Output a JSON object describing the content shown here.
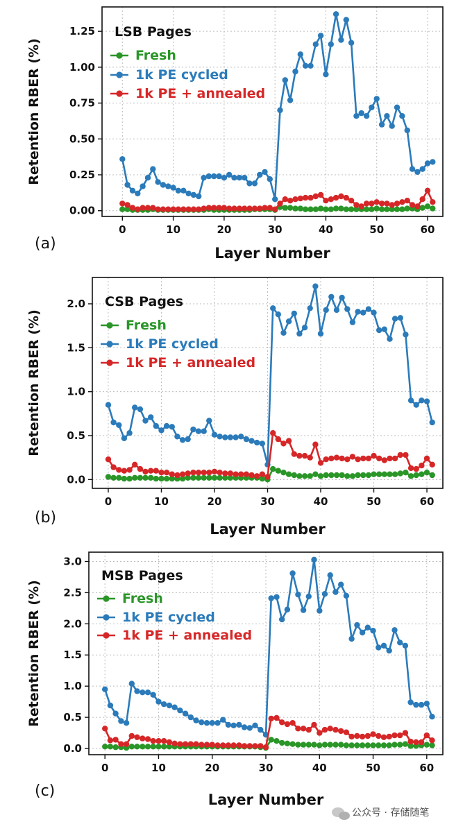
{
  "chart_data": [
    {
      "type": "line",
      "label": "(a)",
      "title": "LSB Pages",
      "xlabel": "Layer Number",
      "ylabel": "Retention RBER (%)",
      "xlim": [
        -4,
        63
      ],
      "ylim": [
        -0.04,
        1.42
      ],
      "xticks": [
        0,
        10,
        20,
        30,
        40,
        50,
        60
      ],
      "yticks": [
        0.0,
        0.25,
        0.5,
        0.75,
        1.0,
        1.25
      ],
      "ytick_labels": [
        "0.00",
        "0.25",
        "0.50",
        "0.75",
        "1.00",
        "1.25"
      ],
      "grid": true,
      "legend_position": "upper-left",
      "series": [
        {
          "name": "Fresh",
          "color": "#2a9628",
          "values": [
            0.01,
            0.01,
            0.005,
            0.005,
            0.005,
            0.005,
            0.01,
            0.005,
            0.005,
            0.005,
            0.005,
            0.005,
            0.005,
            0.005,
            0.005,
            0.005,
            0.005,
            0.01,
            0.005,
            0.005,
            0.005,
            0.005,
            0.005,
            0.005,
            0.005,
            0.005,
            0.01,
            0.01,
            0.01,
            0.01,
            0.005,
            0.025,
            0.02,
            0.02,
            0.015,
            0.015,
            0.01,
            0.01,
            0.01,
            0.015,
            0.01,
            0.01,
            0.015,
            0.015,
            0.01,
            0.01,
            0.01,
            0.01,
            0.01,
            0.01,
            0.015,
            0.01,
            0.01,
            0.01,
            0.01,
            0.01,
            0.015,
            0.015,
            0.01,
            0.02,
            0.03,
            0.015
          ]
        },
        {
          "name": "1k PE cycled",
          "color": "#2b7bba",
          "values": [
            0.36,
            0.18,
            0.14,
            0.12,
            0.17,
            0.23,
            0.29,
            0.2,
            0.18,
            0.17,
            0.16,
            0.14,
            0.14,
            0.12,
            0.11,
            0.1,
            0.23,
            0.24,
            0.24,
            0.24,
            0.23,
            0.25,
            0.23,
            0.23,
            0.23,
            0.19,
            0.19,
            0.25,
            0.27,
            0.22,
            0.08,
            0.7,
            0.91,
            0.77,
            0.97,
            1.09,
            1.01,
            1.01,
            1.16,
            1.22,
            0.95,
            1.16,
            1.37,
            1.19,
            1.33,
            1.17,
            0.66,
            0.68,
            0.66,
            0.72,
            0.78,
            0.6,
            0.66,
            0.59,
            0.72,
            0.66,
            0.56,
            0.29,
            0.27,
            0.29,
            0.33,
            0.34
          ]
        },
        {
          "name": "1k PE + annealed",
          "color": "#d62728",
          "values": [
            0.05,
            0.04,
            0.02,
            0.01,
            0.02,
            0.02,
            0.02,
            0.01,
            0.01,
            0.01,
            0.01,
            0.01,
            0.01,
            0.01,
            0.01,
            0.01,
            0.015,
            0.02,
            0.02,
            0.02,
            0.02,
            0.015,
            0.015,
            0.015,
            0.015,
            0.015,
            0.015,
            0.015,
            0.02,
            0.02,
            0.01,
            0.05,
            0.08,
            0.07,
            0.08,
            0.085,
            0.09,
            0.09,
            0.1,
            0.11,
            0.07,
            0.08,
            0.09,
            0.1,
            0.09,
            0.07,
            0.04,
            0.03,
            0.05,
            0.05,
            0.06,
            0.05,
            0.05,
            0.04,
            0.05,
            0.06,
            0.07,
            0.04,
            0.03,
            0.08,
            0.14,
            0.06
          ]
        }
      ]
    },
    {
      "type": "line",
      "label": "(b)",
      "title": "CSB Pages",
      "xlabel": "Layer Number",
      "ylabel": "Retention RBER (%)",
      "xlim": [
        -3,
        63
      ],
      "ylim": [
        -0.1,
        2.3
      ],
      "xticks": [
        0,
        10,
        20,
        30,
        40,
        50,
        60
      ],
      "yticks": [
        0.0,
        0.5,
        1.0,
        1.5,
        2.0
      ],
      "ytick_labels": [
        "0.0",
        "0.5",
        "1.0",
        "1.5",
        "2.0"
      ],
      "grid": true,
      "legend_position": "upper-left",
      "series": [
        {
          "name": "Fresh",
          "color": "#2a9628",
          "values": [
            0.03,
            0.02,
            0.02,
            0.01,
            0.01,
            0.02,
            0.02,
            0.02,
            0.02,
            0.01,
            0.01,
            0.01,
            0.01,
            0.01,
            0.01,
            0.02,
            0.02,
            0.02,
            0.02,
            0.02,
            0.02,
            0.02,
            0.02,
            0.02,
            0.02,
            0.02,
            0.02,
            0.02,
            0.02,
            0.01,
            0.0,
            0.12,
            0.1,
            0.08,
            0.06,
            0.05,
            0.04,
            0.04,
            0.04,
            0.06,
            0.04,
            0.05,
            0.05,
            0.05,
            0.05,
            0.04,
            0.04,
            0.05,
            0.05,
            0.05,
            0.06,
            0.06,
            0.06,
            0.06,
            0.06,
            0.07,
            0.08,
            0.04,
            0.05,
            0.06,
            0.08,
            0.05
          ]
        },
        {
          "name": "1k PE cycled",
          "color": "#2b7bba",
          "values": [
            0.85,
            0.65,
            0.62,
            0.47,
            0.53,
            0.82,
            0.8,
            0.67,
            0.71,
            0.61,
            0.56,
            0.61,
            0.6,
            0.49,
            0.45,
            0.46,
            0.57,
            0.55,
            0.55,
            0.67,
            0.51,
            0.49,
            0.48,
            0.48,
            0.48,
            0.49,
            0.46,
            0.44,
            0.42,
            0.41,
            0.17,
            1.95,
            1.88,
            1.67,
            1.8,
            1.89,
            1.66,
            1.73,
            1.95,
            2.2,
            1.66,
            1.93,
            2.08,
            1.93,
            2.07,
            1.94,
            1.79,
            1.91,
            1.9,
            1.94,
            1.9,
            1.7,
            1.71,
            1.6,
            1.83,
            1.84,
            1.65,
            0.9,
            0.85,
            0.9,
            0.89,
            0.65
          ]
        },
        {
          "name": "1k PE + annealed",
          "color": "#d62728",
          "values": [
            0.23,
            0.14,
            0.11,
            0.1,
            0.11,
            0.17,
            0.12,
            0.09,
            0.1,
            0.1,
            0.08,
            0.08,
            0.06,
            0.05,
            0.06,
            0.07,
            0.08,
            0.08,
            0.08,
            0.08,
            0.09,
            0.08,
            0.07,
            0.07,
            0.06,
            0.06,
            0.06,
            0.05,
            0.04,
            0.06,
            0.03,
            0.53,
            0.46,
            0.41,
            0.44,
            0.29,
            0.27,
            0.27,
            0.25,
            0.4,
            0.19,
            0.23,
            0.24,
            0.25,
            0.24,
            0.23,
            0.26,
            0.23,
            0.24,
            0.24,
            0.27,
            0.24,
            0.22,
            0.24,
            0.24,
            0.28,
            0.28,
            0.13,
            0.12,
            0.16,
            0.24,
            0.17
          ]
        }
      ]
    },
    {
      "type": "line",
      "label": "(c)",
      "title": "MSB Pages",
      "xlabel": "Layer Number",
      "ylabel": "Retention RBER (%)",
      "xlim": [
        -3,
        63
      ],
      "ylim": [
        -0.1,
        3.15
      ],
      "xticks": [
        0,
        10,
        20,
        30,
        40,
        50,
        60
      ],
      "yticks": [
        0.0,
        0.5,
        1.0,
        1.5,
        2.0,
        2.5,
        3.0
      ],
      "ytick_labels": [
        "0.0",
        "0.5",
        "1.0",
        "1.5",
        "2.0",
        "2.5",
        "3.0"
      ],
      "grid": true,
      "legend_position": "upper-left",
      "series": [
        {
          "name": "Fresh",
          "color": "#2a9628",
          "values": [
            0.03,
            0.03,
            0.02,
            0.02,
            0.01,
            0.03,
            0.03,
            0.03,
            0.03,
            0.03,
            0.03,
            0.03,
            0.03,
            0.03,
            0.03,
            0.03,
            0.03,
            0.03,
            0.03,
            0.03,
            0.03,
            0.03,
            0.03,
            0.03,
            0.03,
            0.03,
            0.03,
            0.03,
            0.03,
            0.02,
            0.01,
            0.14,
            0.12,
            0.09,
            0.08,
            0.07,
            0.06,
            0.06,
            0.06,
            0.06,
            0.05,
            0.06,
            0.06,
            0.06,
            0.06,
            0.05,
            0.05,
            0.05,
            0.05,
            0.05,
            0.05,
            0.05,
            0.05,
            0.05,
            0.06,
            0.06,
            0.07,
            0.04,
            0.04,
            0.05,
            0.06,
            0.05
          ]
        },
        {
          "name": "1k PE cycled",
          "color": "#2b7bba",
          "values": [
            0.95,
            0.69,
            0.56,
            0.44,
            0.41,
            1.04,
            0.92,
            0.9,
            0.9,
            0.86,
            0.75,
            0.71,
            0.69,
            0.66,
            0.61,
            0.56,
            0.5,
            0.45,
            0.42,
            0.41,
            0.41,
            0.41,
            0.46,
            0.38,
            0.37,
            0.38,
            0.34,
            0.33,
            0.37,
            0.3,
            0.22,
            2.41,
            2.43,
            2.07,
            2.23,
            2.81,
            2.47,
            2.22,
            2.44,
            3.03,
            2.21,
            2.48,
            2.78,
            2.51,
            2.63,
            2.45,
            1.76,
            1.98,
            1.86,
            1.94,
            1.89,
            1.62,
            1.65,
            1.57,
            1.9,
            1.7,
            1.65,
            0.74,
            0.7,
            0.7,
            0.72,
            0.51
          ]
        },
        {
          "name": "1k PE + annealed",
          "color": "#d62728",
          "values": [
            0.32,
            0.13,
            0.14,
            0.07,
            0.07,
            0.2,
            0.18,
            0.16,
            0.15,
            0.12,
            0.12,
            0.12,
            0.1,
            0.08,
            0.07,
            0.07,
            0.07,
            0.07,
            0.06,
            0.06,
            0.06,
            0.05,
            0.05,
            0.05,
            0.05,
            0.05,
            0.04,
            0.04,
            0.04,
            0.04,
            0.02,
            0.48,
            0.49,
            0.42,
            0.39,
            0.41,
            0.32,
            0.32,
            0.3,
            0.38,
            0.25,
            0.3,
            0.32,
            0.3,
            0.28,
            0.26,
            0.19,
            0.2,
            0.19,
            0.2,
            0.23,
            0.2,
            0.18,
            0.19,
            0.21,
            0.21,
            0.25,
            0.11,
            0.1,
            0.1,
            0.21,
            0.13
          ]
        }
      ]
    }
  ],
  "watermark": "公众号 · 存储随笔"
}
